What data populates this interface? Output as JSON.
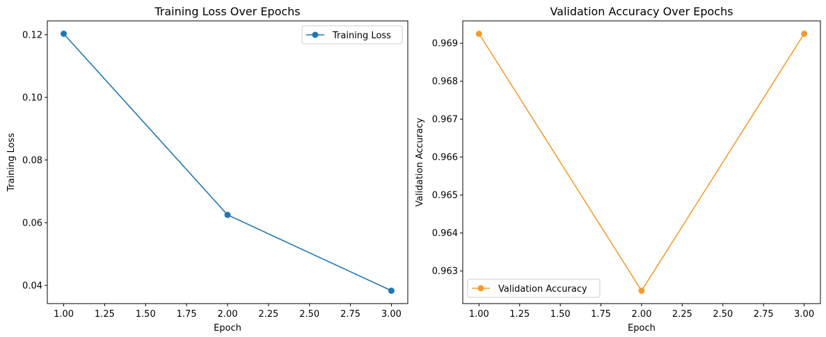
{
  "chart_data": [
    {
      "type": "line",
      "title": "Training Loss Over Epochs",
      "xlabel": "Epoch",
      "ylabel": "Training Loss",
      "x": [
        1.0,
        2.0,
        3.0
      ],
      "series": [
        {
          "name": "Training Loss",
          "color": "#1f77b4",
          "marker": "circle",
          "values": [
            0.1203,
            0.0625,
            0.0383
          ]
        }
      ],
      "xlim": [
        0.9,
        3.1
      ],
      "ylim": [
        0.0342,
        0.1244
      ],
      "xticks": [
        1.0,
        1.25,
        1.5,
        1.75,
        2.0,
        2.25,
        2.5,
        2.75,
        3.0
      ],
      "xtick_labels": [
        "1.00",
        "1.25",
        "1.50",
        "1.75",
        "2.00",
        "2.25",
        "2.50",
        "2.75",
        "3.00"
      ],
      "yticks": [
        0.04,
        0.06,
        0.08,
        0.1,
        0.12
      ],
      "ytick_labels": [
        "0.04",
        "0.06",
        "0.08",
        "0.10",
        "0.12"
      ],
      "grid": false,
      "legend": "upper right"
    },
    {
      "type": "line",
      "title": "Validation Accuracy Over Epochs",
      "xlabel": "Epoch",
      "ylabel": "Validation Accuracy",
      "x": [
        1.0,
        2.0,
        3.0
      ],
      "series": [
        {
          "name": "Validation Accuracy",
          "color": "#f59b2e",
          "marker": "circle",
          "values": [
            0.96925,
            0.96248,
            0.96925
          ]
        }
      ],
      "xlim": [
        0.9,
        3.1
      ],
      "ylim": [
        0.96214,
        0.96959
      ],
      "xticks": [
        1.0,
        1.25,
        1.5,
        1.75,
        2.0,
        2.25,
        2.5,
        2.75,
        3.0
      ],
      "xtick_labels": [
        "1.00",
        "1.25",
        "1.50",
        "1.75",
        "2.00",
        "2.25",
        "2.50",
        "2.75",
        "3.00"
      ],
      "yticks": [
        0.963,
        0.964,
        0.965,
        0.966,
        0.967,
        0.968,
        0.969
      ],
      "ytick_labels": [
        "0.963",
        "0.964",
        "0.965",
        "0.966",
        "0.967",
        "0.968",
        "0.969"
      ],
      "grid": false,
      "legend": "lower left"
    }
  ]
}
